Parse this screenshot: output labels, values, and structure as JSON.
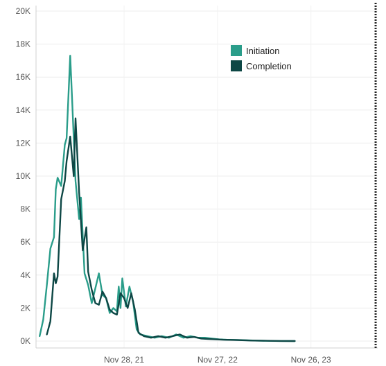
{
  "chart_data": {
    "type": "line",
    "title": "",
    "xlabel": "",
    "ylabel": "",
    "ylim": [
      0,
      20000
    ],
    "y_ticks": [
      {
        "value": 0,
        "label": "0K"
      },
      {
        "value": 2000,
        "label": "2K"
      },
      {
        "value": 4000,
        "label": "4K"
      },
      {
        "value": 6000,
        "label": "6K"
      },
      {
        "value": 8000,
        "label": "8K"
      },
      {
        "value": 10000,
        "label": "10K"
      },
      {
        "value": 12000,
        "label": "12K"
      },
      {
        "value": 14000,
        "label": "14K"
      },
      {
        "value": 16000,
        "label": "16K"
      },
      {
        "value": 18000,
        "label": "18K"
      },
      {
        "value": 20000,
        "label": "20K"
      }
    ],
    "xlim": [
      "2020-12-20",
      "2024-08-12"
    ],
    "x_ticks": [
      {
        "value": "2021-11-28",
        "label": "Nov 28, 21"
      },
      {
        "value": "2022-11-27",
        "label": "Nov 27, 22"
      },
      {
        "value": "2023-11-26",
        "label": "Nov 26, 23"
      }
    ],
    "grid": true,
    "legend_position": "top-right",
    "reference_line": {
      "x": "2024-08-04",
      "style": "dotted"
    },
    "series": [
      {
        "name": "Initiation",
        "color": "#2a9d8a",
        "points": [
          [
            "2021-01-03",
            300
          ],
          [
            "2021-01-17",
            1300
          ],
          [
            "2021-01-31",
            3400
          ],
          [
            "2021-02-14",
            5600
          ],
          [
            "2021-02-28",
            6300
          ],
          [
            "2021-03-07",
            9200
          ],
          [
            "2021-03-14",
            9900
          ],
          [
            "2021-03-28",
            9400
          ],
          [
            "2021-04-11",
            11900
          ],
          [
            "2021-04-18",
            12300
          ],
          [
            "2021-05-02",
            17300
          ],
          [
            "2021-05-09",
            14800
          ],
          [
            "2021-05-23",
            9700
          ],
          [
            "2021-06-06",
            7400
          ],
          [
            "2021-06-13",
            8700
          ],
          [
            "2021-06-27",
            4100
          ],
          [
            "2021-07-11",
            3400
          ],
          [
            "2021-07-25",
            2300
          ],
          [
            "2021-08-08",
            3200
          ],
          [
            "2021-08-22",
            4100
          ],
          [
            "2021-09-05",
            2800
          ],
          [
            "2021-09-19",
            2600
          ],
          [
            "2021-10-03",
            1700
          ],
          [
            "2021-10-17",
            2000
          ],
          [
            "2021-10-31",
            1800
          ],
          [
            "2021-11-07",
            3300
          ],
          [
            "2021-11-14",
            2000
          ],
          [
            "2021-11-21",
            3800
          ],
          [
            "2021-12-05",
            2100
          ],
          [
            "2021-12-19",
            3300
          ],
          [
            "2022-01-02",
            2400
          ],
          [
            "2022-01-16",
            700
          ],
          [
            "2022-01-30",
            400
          ],
          [
            "2022-02-27",
            300
          ],
          [
            "2022-03-27",
            200
          ],
          [
            "2022-04-24",
            300
          ],
          [
            "2022-05-22",
            200
          ],
          [
            "2022-06-19",
            400
          ],
          [
            "2022-07-17",
            200
          ],
          [
            "2022-08-14",
            300
          ],
          [
            "2022-09-11",
            200
          ],
          [
            "2022-10-09",
            200
          ],
          [
            "2022-11-06",
            150
          ],
          [
            "2022-12-04",
            100
          ],
          [
            "2023-01-01",
            80
          ],
          [
            "2023-02-26",
            60
          ],
          [
            "2023-04-23",
            30
          ],
          [
            "2023-06-18",
            10
          ],
          [
            "2023-08-13",
            5
          ],
          [
            "2023-09-24",
            0
          ]
        ]
      },
      {
        "name": "Completion",
        "color": "#0d4745",
        "points": [
          [
            "2021-01-31",
            400
          ],
          [
            "2021-02-14",
            1200
          ],
          [
            "2021-02-28",
            4100
          ],
          [
            "2021-03-07",
            3500
          ],
          [
            "2021-03-14",
            3900
          ],
          [
            "2021-03-28",
            8600
          ],
          [
            "2021-04-11",
            9700
          ],
          [
            "2021-04-18",
            10900
          ],
          [
            "2021-05-02",
            12400
          ],
          [
            "2021-05-16",
            10000
          ],
          [
            "2021-05-23",
            13500
          ],
          [
            "2021-06-06",
            9000
          ],
          [
            "2021-06-20",
            5500
          ],
          [
            "2021-07-04",
            6900
          ],
          [
            "2021-07-11",
            4200
          ],
          [
            "2021-07-25",
            3100
          ],
          [
            "2021-08-08",
            2300
          ],
          [
            "2021-08-22",
            2200
          ],
          [
            "2021-09-05",
            3000
          ],
          [
            "2021-09-19",
            2600
          ],
          [
            "2021-10-03",
            1900
          ],
          [
            "2021-10-17",
            1700
          ],
          [
            "2021-10-31",
            1600
          ],
          [
            "2021-11-14",
            2900
          ],
          [
            "2021-11-28",
            2600
          ],
          [
            "2021-12-12",
            2000
          ],
          [
            "2021-12-26",
            2900
          ],
          [
            "2022-01-09",
            1900
          ],
          [
            "2022-01-23",
            500
          ],
          [
            "2022-02-13",
            300
          ],
          [
            "2022-03-13",
            200
          ],
          [
            "2022-04-10",
            300
          ],
          [
            "2022-05-08",
            200
          ],
          [
            "2022-06-05",
            300
          ],
          [
            "2022-07-03",
            400
          ],
          [
            "2022-07-31",
            200
          ],
          [
            "2022-08-28",
            250
          ],
          [
            "2022-09-25",
            150
          ],
          [
            "2022-10-23",
            120
          ],
          [
            "2022-11-20",
            100
          ],
          [
            "2022-12-18",
            80
          ],
          [
            "2023-02-12",
            60
          ],
          [
            "2023-04-09",
            30
          ],
          [
            "2023-06-04",
            15
          ],
          [
            "2023-07-30",
            5
          ],
          [
            "2023-09-24",
            0
          ]
        ]
      }
    ]
  }
}
